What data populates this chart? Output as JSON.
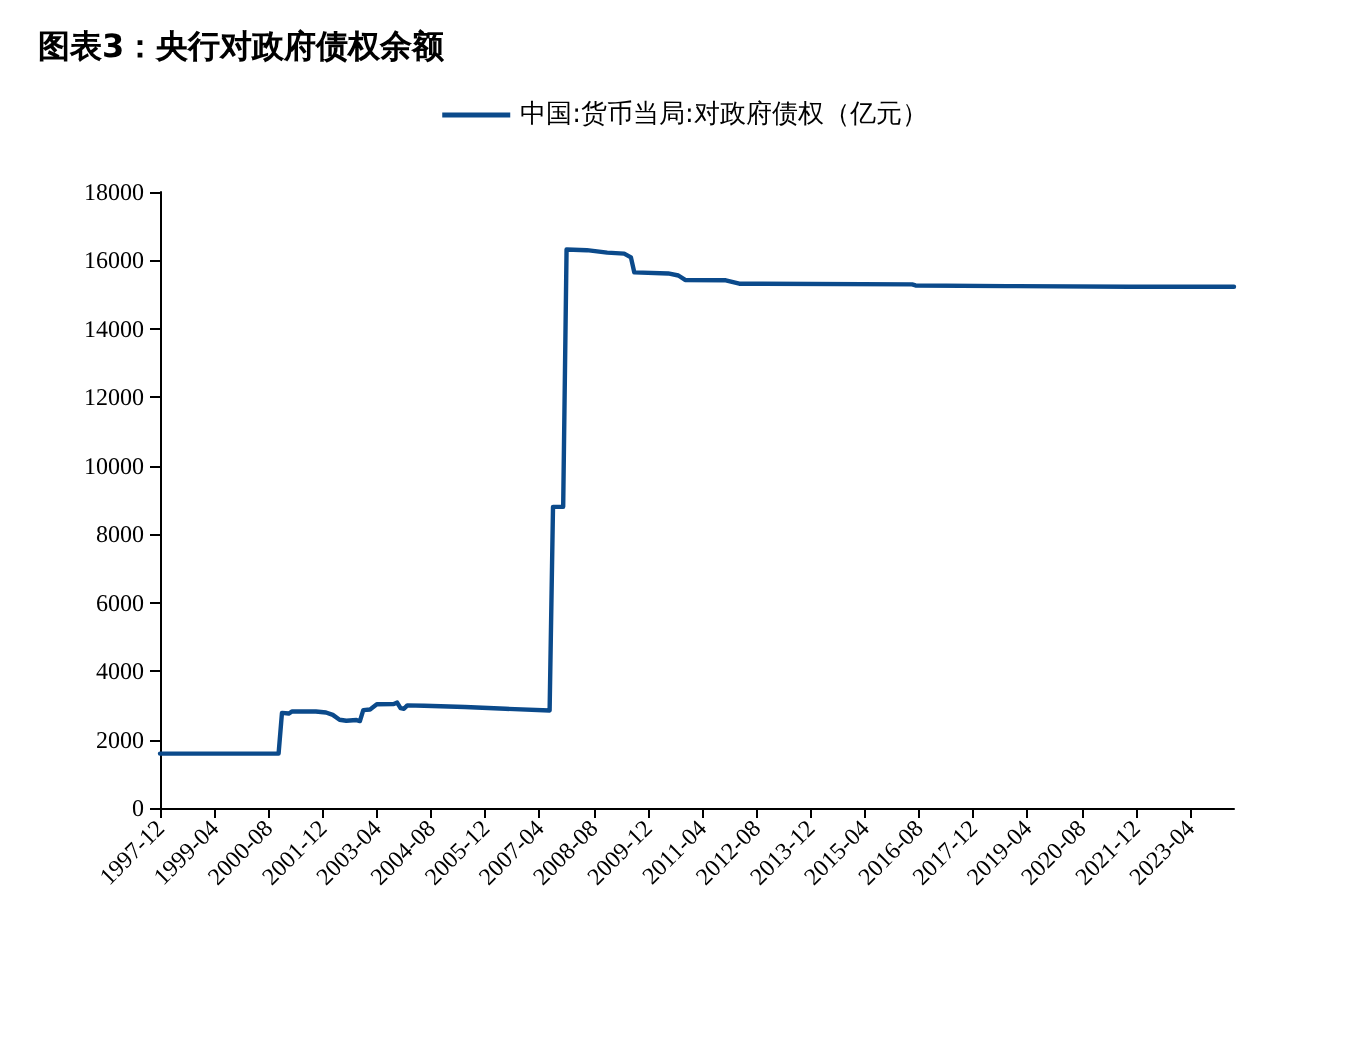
{
  "chart_data": {
    "type": "line",
    "title": "图表3：央行对政府债权余额",
    "x": [
      "1997-12",
      "2000-11",
      "2000-12",
      "2001-02",
      "2001-03",
      "2001-10",
      "2002-01",
      "2002-03",
      "2002-05",
      "2002-07",
      "2002-10",
      "2002-11",
      "2002-12",
      "2003-02",
      "2003-04",
      "2003-09",
      "2003-10",
      "2003-11",
      "2003-12",
      "2004-01",
      "2004-06",
      "2005-06",
      "2006-06",
      "2007-07",
      "2007-08",
      "2007-11",
      "2007-12",
      "2008-06",
      "2008-12",
      "2009-05",
      "2009-07",
      "2009-08",
      "2010-06",
      "2010-09",
      "2010-11",
      "2011-11",
      "2012-03",
      "2016-06",
      "2016-07",
      "2018-10",
      "2021-10",
      "2024-05"
    ],
    "series": [
      {
        "name": "中国:货币当局:对政府债权（亿元）",
        "color": "#0b4a8b",
        "values": [
          1590,
          1590,
          2780,
          2760,
          2820,
          2820,
          2790,
          2720,
          2580,
          2550,
          2570,
          2540,
          2860,
          2880,
          3030,
          3040,
          3080,
          2920,
          2900,
          3000,
          2990,
          2950,
          2900,
          2850,
          8800,
          8800,
          16320,
          16300,
          16230,
          16200,
          16090,
          15650,
          15620,
          15560,
          15430,
          15420,
          15320,
          15300,
          15270,
          15250,
          15230,
          15230
        ]
      }
    ],
    "xlim": [
      "1997-12",
      "2024-05"
    ],
    "xticks": [
      "1997-12",
      "1999-04",
      "2000-08",
      "2001-12",
      "2003-04",
      "2004-08",
      "2005-12",
      "2007-04",
      "2008-08",
      "2009-12",
      "2011-04",
      "2012-08",
      "2013-12",
      "2015-04",
      "2016-08",
      "2017-12",
      "2019-04",
      "2020-08",
      "2021-12",
      "2023-04"
    ],
    "ylim": [
      0,
      18000
    ],
    "yticks": [
      0,
      2000,
      4000,
      6000,
      8000,
      10000,
      12000,
      14000,
      16000,
      18000
    ],
    "grid": false,
    "legend": "top",
    "marker": "none",
    "line_style": "solid"
  }
}
